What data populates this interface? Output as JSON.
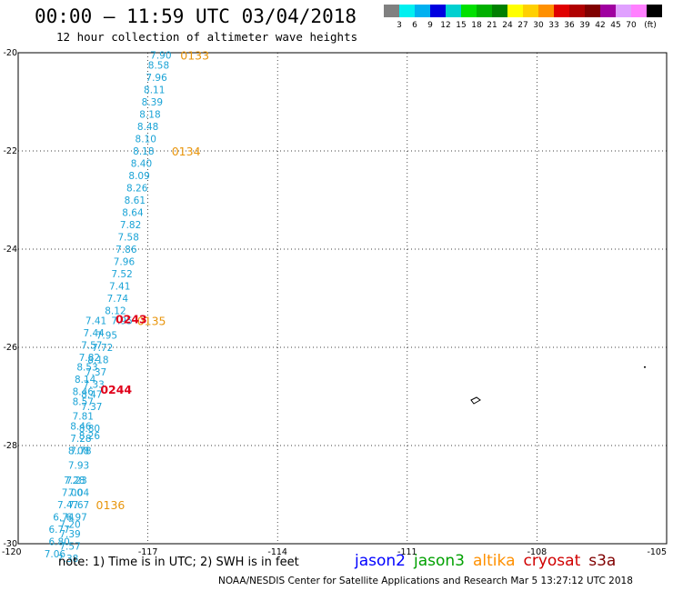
{
  "header": {
    "title": "00:00 – 11:59 UTC 03/04/2018",
    "subtitle": "12 hour collection of altimeter wave heights"
  },
  "colorbar": {
    "colors": [
      "#808080",
      "#00f0f0",
      "#00b0f0",
      "#0000e0",
      "#00d0d0",
      "#00e000",
      "#00b000",
      "#008000",
      "#ffff00",
      "#ffd000",
      "#ff9000",
      "#e00000",
      "#b00000",
      "#800000",
      "#a000a0",
      "#e0a0ff",
      "#ff80ff",
      "#000000"
    ],
    "labels": [
      "3",
      "6",
      "9",
      "12",
      "15",
      "18",
      "21",
      "24",
      "27",
      "30",
      "33",
      "36",
      "39",
      "42",
      "45",
      "70",
      "(ft)"
    ]
  },
  "map_data": {
    "lon_range": [
      -120,
      -105
    ],
    "lat_range": [
      -30,
      -20
    ],
    "lon_ticks": [
      "-120",
      "-117",
      "-114",
      "-111",
      "-108",
      "-105"
    ],
    "lat_ticks": [
      "-20",
      "-22",
      "-24",
      "-26",
      "-28",
      "-30"
    ],
    "grid": true,
    "observations": [
      {
        "lon": -116.7,
        "lat": -20.05,
        "v": "7.90"
      },
      {
        "lon": -116.75,
        "lat": -20.25,
        "v": "8.58"
      },
      {
        "lon": -116.8,
        "lat": -20.5,
        "v": "7.96"
      },
      {
        "lon": -116.85,
        "lat": -20.75,
        "v": "8.11"
      },
      {
        "lon": -116.9,
        "lat": -21.0,
        "v": "8.39"
      },
      {
        "lon": -116.95,
        "lat": -21.25,
        "v": "8.18"
      },
      {
        "lon": -117.0,
        "lat": -21.5,
        "v": "8.48"
      },
      {
        "lon": -117.05,
        "lat": -21.75,
        "v": "8.10"
      },
      {
        "lon": -117.1,
        "lat": -22.0,
        "v": "8.18"
      },
      {
        "lon": -117.15,
        "lat": -22.25,
        "v": "8.40"
      },
      {
        "lon": -117.2,
        "lat": -22.5,
        "v": "8.09"
      },
      {
        "lon": -117.25,
        "lat": -22.75,
        "v": "8.26"
      },
      {
        "lon": -117.3,
        "lat": -23.0,
        "v": "8.61"
      },
      {
        "lon": -117.35,
        "lat": -23.25,
        "v": "8.64"
      },
      {
        "lon": -117.4,
        "lat": -23.5,
        "v": "7.82"
      },
      {
        "lon": -117.45,
        "lat": -23.75,
        "v": "7.58"
      },
      {
        "lon": -117.5,
        "lat": -24.0,
        "v": "7.86"
      },
      {
        "lon": -117.55,
        "lat": -24.25,
        "v": "7.96"
      },
      {
        "lon": -117.6,
        "lat": -24.5,
        "v": "7.52"
      },
      {
        "lon": -117.65,
        "lat": -24.75,
        "v": "7.41"
      },
      {
        "lon": -117.7,
        "lat": -25.0,
        "v": "7.74"
      },
      {
        "lon": -117.75,
        "lat": -25.25,
        "v": "8.12"
      },
      {
        "lon": -118.2,
        "lat": -25.45,
        "v": "7.41"
      },
      {
        "lon": -117.6,
        "lat": -25.45,
        "v": "7.95"
      },
      {
        "lon": -118.25,
        "lat": -25.7,
        "v": "7.44"
      },
      {
        "lon": -117.95,
        "lat": -25.75,
        "v": "7.95"
      },
      {
        "lon": -118.3,
        "lat": -25.95,
        "v": "7.57"
      },
      {
        "lon": -118.05,
        "lat": -26.0,
        "v": "7.72"
      },
      {
        "lon": -118.35,
        "lat": -26.2,
        "v": "7.82"
      },
      {
        "lon": -118.15,
        "lat": -26.25,
        "v": "8.18"
      },
      {
        "lon": -118.4,
        "lat": -26.4,
        "v": "8.53"
      },
      {
        "lon": -118.2,
        "lat": -26.5,
        "v": "7.37"
      },
      {
        "lon": -118.45,
        "lat": -26.65,
        "v": "8.14"
      },
      {
        "lon": -118.25,
        "lat": -26.75,
        "v": "7.33"
      },
      {
        "lon": -118.5,
        "lat": -26.9,
        "v": "8.46"
      },
      {
        "lon": -118.3,
        "lat": -26.95,
        "v": "8.47"
      },
      {
        "lon": -118.5,
        "lat": -27.1,
        "v": "8.57"
      },
      {
        "lon": -118.3,
        "lat": -27.2,
        "v": "7.37"
      },
      {
        "lon": -118.5,
        "lat": -27.4,
        "v": "7.81"
      },
      {
        "lon": -118.55,
        "lat": -27.6,
        "v": "8.46"
      },
      {
        "lon": -118.35,
        "lat": -27.65,
        "v": "8.80"
      },
      {
        "lon": -118.55,
        "lat": -27.85,
        "v": "7.28"
      },
      {
        "lon": -118.35,
        "lat": -27.8,
        "v": "8.26"
      },
      {
        "lon": -118.6,
        "lat": -28.1,
        "v": "8.08"
      },
      {
        "lon": -118.55,
        "lat": -28.1,
        "v": "7.78"
      },
      {
        "lon": -118.6,
        "lat": -28.4,
        "v": "7.93"
      },
      {
        "lon": -118.7,
        "lat": -28.7,
        "v": "7.28"
      },
      {
        "lon": -118.65,
        "lat": -28.7,
        "v": "7.23"
      },
      {
        "lon": -118.75,
        "lat": -28.95,
        "v": "7.00"
      },
      {
        "lon": -118.6,
        "lat": -28.95,
        "v": "7.04"
      },
      {
        "lon": -118.85,
        "lat": -29.2,
        "v": "7.47"
      },
      {
        "lon": -118.6,
        "lat": -29.2,
        "v": "7.67"
      },
      {
        "lon": -118.95,
        "lat": -29.45,
        "v": "6.74"
      },
      {
        "lon": -118.65,
        "lat": -29.45,
        "v": "6.97"
      },
      {
        "lon": -118.8,
        "lat": -29.6,
        "v": "7.20"
      },
      {
        "lon": -119.05,
        "lat": -29.7,
        "v": "6.77"
      },
      {
        "lon": -118.8,
        "lat": -29.8,
        "v": "7.39"
      },
      {
        "lon": -119.05,
        "lat": -29.95,
        "v": "6.80"
      },
      {
        "lon": -118.8,
        "lat": -30.05,
        "v": "7.57"
      },
      {
        "lon": -119.15,
        "lat": -30.2,
        "v": "7.06"
      },
      {
        "lon": -118.85,
        "lat": -30.3,
        "v": "7.38"
      }
    ],
    "time_labels": [
      {
        "lon": -116.25,
        "lat": -20.05,
        "t": "0133",
        "color": "orange"
      },
      {
        "lon": -116.45,
        "lat": -22.0,
        "t": "0134",
        "color": "orange"
      },
      {
        "lon": -117.25,
        "lat": -25.45,
        "t": "0135",
        "color": "orange"
      },
      {
        "lon": -117.75,
        "lat": -25.42,
        "t": "0243",
        "color": "red"
      },
      {
        "lon": -118.1,
        "lat": -26.85,
        "t": "0244",
        "color": "red"
      },
      {
        "lon": -118.2,
        "lat": -29.2,
        "t": "0136",
        "color": "orange"
      }
    ]
  },
  "footer": {
    "note": "note: 1) Time is in UTC; 2) SWH is in feet",
    "legend": [
      {
        "name": "jason2",
        "color": "#0000ff"
      },
      {
        "name": "jason3",
        "color": "#00a000"
      },
      {
        "name": "altika",
        "color": "#ff9000"
      },
      {
        "name": "cryosat",
        "color": "#d00000"
      },
      {
        "name": "s3a",
        "color": "#800000"
      }
    ],
    "credit": "NOAA/NESDIS Center for Satellite Applications and Research   Mar  5 13:27:12 UTC 2018"
  }
}
